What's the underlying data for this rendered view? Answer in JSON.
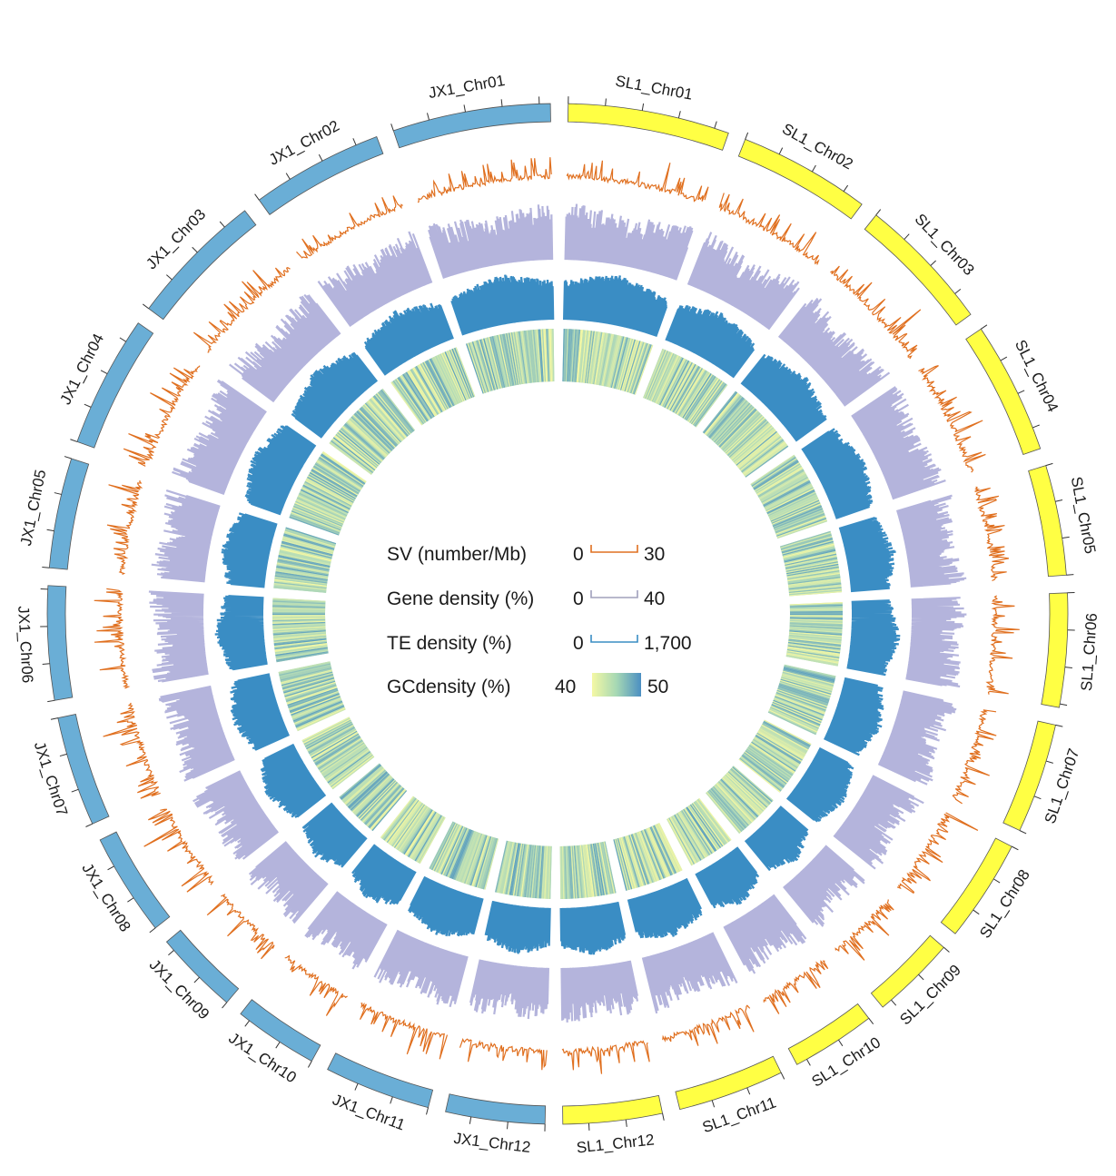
{
  "chart_data": {
    "type": "circos",
    "tracks": [
      "karyotype",
      "SV",
      "Gene density",
      "TE density",
      "GC density"
    ],
    "genomes": [
      {
        "name": "SL1",
        "color": "#ffff44",
        "chromosomes": [
          {
            "name": "SL1_Chr01",
            "length_mb": 44
          },
          {
            "name": "SL1_Chr02",
            "length_mb": 36
          },
          {
            "name": "SL1_Chr03",
            "length_mb": 37
          },
          {
            "name": "SL1_Chr04",
            "length_mb": 36
          },
          {
            "name": "SL1_Chr05",
            "length_mb": 30
          },
          {
            "name": "SL1_Chr06",
            "length_mb": 31
          },
          {
            "name": "SL1_Chr07",
            "length_mb": 30
          },
          {
            "name": "SL1_Chr08",
            "length_mb": 28
          },
          {
            "name": "SL1_Chr09",
            "length_mb": 23
          },
          {
            "name": "SL1_Chr10",
            "length_mb": 23
          },
          {
            "name": "SL1_Chr11",
            "length_mb": 29
          },
          {
            "name": "SL1_Chr12",
            "length_mb": 27
          }
        ]
      },
      {
        "name": "JX1",
        "color": "#6aaed6",
        "chromosomes": [
          {
            "name": "JX1_Chr01",
            "length_mb": 43
          },
          {
            "name": "JX1_Chr02",
            "length_mb": 36
          },
          {
            "name": "JX1_Chr03",
            "length_mb": 37
          },
          {
            "name": "JX1_Chr04",
            "length_mb": 36
          },
          {
            "name": "JX1_Chr05",
            "length_mb": 30
          },
          {
            "name": "JX1_Chr06",
            "length_mb": 31
          },
          {
            "name": "JX1_Chr07",
            "length_mb": 30
          },
          {
            "name": "JX1_Chr08",
            "length_mb": 28
          },
          {
            "name": "JX1_Chr09",
            "length_mb": 23
          },
          {
            "name": "JX1_Chr10",
            "length_mb": 23
          },
          {
            "name": "JX1_Chr11",
            "length_mb": 29
          },
          {
            "name": "JX1_Chr12",
            "length_mb": 27
          }
        ]
      }
    ],
    "legend": [
      {
        "label": "SV (number/Mb)",
        "min": "0",
        "max": "30",
        "color": "#e07020"
      },
      {
        "label": "Gene density (%)",
        "min": "0",
        "max": "40",
        "color": "#a9a9c8"
      },
      {
        "label": "TE density (%)",
        "min": "0",
        "max": "1,700",
        "color": "#3a8dc4"
      },
      {
        "label": "GCdensity (%)",
        "min": "40",
        "max": "50",
        "gradient": [
          "#f2f7a0",
          "#a6d8b4",
          "#4b8fc2"
        ]
      }
    ],
    "track_colors": {
      "sv": "#e07020",
      "gene": "#b4b4dc",
      "te": "#3a8dc4",
      "gc_low": "#f4f8a4",
      "gc_mid": "#b5dcb7",
      "gc_high": "#4b93c0"
    }
  }
}
